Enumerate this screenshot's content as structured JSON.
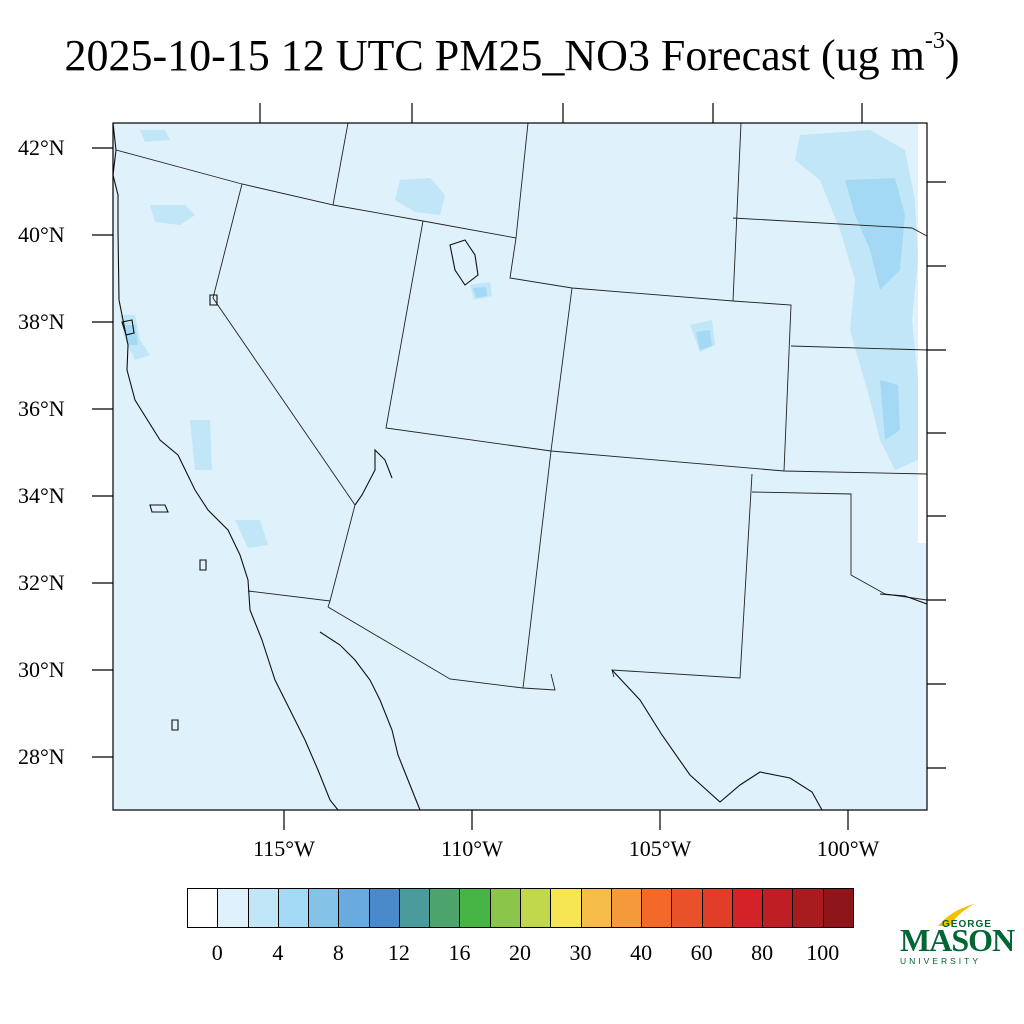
{
  "title": {
    "main": "2025-10-15 12 UTC PM25_NO3 Forecast (ug m",
    "exponent": "-3",
    "close": ")"
  },
  "map": {
    "lat_labels": [
      "42°N",
      "40°N",
      "38°N",
      "36°N",
      "34°N",
      "32°N",
      "30°N",
      "28°N"
    ],
    "lon_labels": [
      "115°W",
      "110°W",
      "105°W",
      "100°W"
    ],
    "background_fill": "#dff1fb",
    "ocean_fill": "#dff1fb"
  },
  "colorbar": {
    "labels": [
      "0",
      "4",
      "8",
      "12",
      "16",
      "20",
      "30",
      "40",
      "60",
      "80",
      "100"
    ],
    "colors": [
      "#ffffff",
      "#dff1fb",
      "#c1e6f8",
      "#a3d9f5",
      "#85c2e8",
      "#69aadf",
      "#4a8acb",
      "#4a9c9c",
      "#4ca46c",
      "#47b545",
      "#8bc64a",
      "#c2d84c",
      "#f7e654",
      "#f6bd48",
      "#f59a3a",
      "#f4692a",
      "#e9512a",
      "#e13d29",
      "#d52228",
      "#bf1e24",
      "#a81c20",
      "#8e151a"
    ]
  },
  "logo": {
    "george": "GEORGE",
    "mason": "MASON",
    "university": "UNIVERSITY"
  }
}
